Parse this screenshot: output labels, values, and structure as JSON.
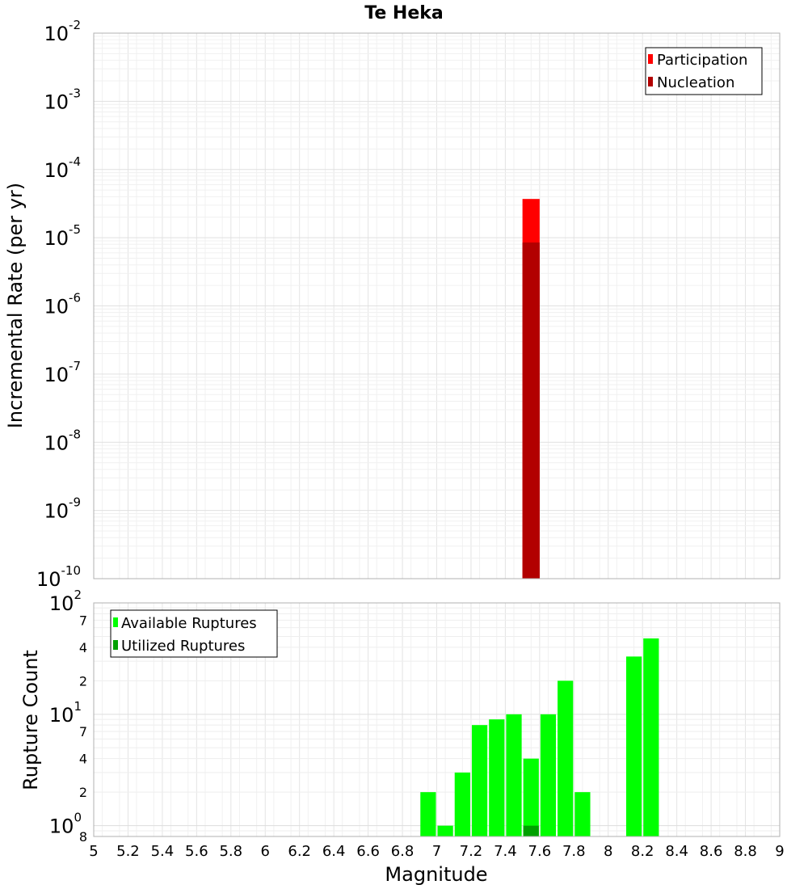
{
  "chart_data": [
    {
      "type": "bar",
      "title": "Te Heka",
      "xlabel": "",
      "ylabel": "Incremental Rate (per yr)",
      "x_range": [
        5,
        9
      ],
      "y_scale": "log",
      "ylim": [
        1e-10,
        0.01
      ],
      "grid": true,
      "legend_position": "top-right",
      "y_tick_labels": [
        {
          "value": 1e-10,
          "base": "10",
          "exp": "-10"
        },
        {
          "value": 1e-09,
          "base": "10",
          "exp": "-9"
        },
        {
          "value": 1e-08,
          "base": "10",
          "exp": "-8"
        },
        {
          "value": 1e-07,
          "base": "10",
          "exp": "-7"
        },
        {
          "value": 1e-06,
          "base": "10",
          "exp": "-6"
        },
        {
          "value": 1e-05,
          "base": "10",
          "exp": "-5"
        },
        {
          "value": 0.0001,
          "base": "10",
          "exp": "-4"
        },
        {
          "value": 0.001,
          "base": "10",
          "exp": "-3"
        },
        {
          "value": 0.01,
          "base": "10",
          "exp": "-2"
        }
      ],
      "series": [
        {
          "name": "Participation",
          "color": "#ff0000",
          "x": [
            7.55
          ],
          "values": [
            3.7e-05
          ]
        },
        {
          "name": "Nucleation",
          "color": "#b20000",
          "x": [
            7.55
          ],
          "values": [
            8.5e-06
          ]
        }
      ]
    },
    {
      "type": "bar",
      "xlabel": "Magnitude",
      "ylabel": "Rupture Count",
      "x_range": [
        5,
        9
      ],
      "y_scale": "log",
      "ylim": [
        0.8,
        100
      ],
      "grid": true,
      "legend_position": "top-left",
      "y_tick_labels": [
        {
          "value": 1,
          "base": "10",
          "exp": "0"
        },
        {
          "value": 10,
          "base": "10",
          "exp": "1"
        },
        {
          "value": 100,
          "base": "10",
          "exp": "2"
        }
      ],
      "y_minor_tick_labels": [
        {
          "value": 0.8,
          "label": "8"
        },
        {
          "value": 2,
          "label": "2"
        },
        {
          "value": 4,
          "label": "4"
        },
        {
          "value": 7,
          "label": "7"
        },
        {
          "value": 20,
          "label": "2"
        },
        {
          "value": 40,
          "label": "4"
        },
        {
          "value": 70,
          "label": "7"
        }
      ],
      "x_tick_labels": [
        "5",
        "5.2",
        "5.4",
        "5.6",
        "5.8",
        "6",
        "6.2",
        "6.4",
        "6.6",
        "6.8",
        "7",
        "7.2",
        "7.4",
        "7.6",
        "7.8",
        "8",
        "8.2",
        "8.4",
        "8.6",
        "8.8",
        "9"
      ],
      "series": [
        {
          "name": "Available Ruptures",
          "color": "#00ff00",
          "x": [
            6.95,
            7.05,
            7.15,
            7.25,
            7.35,
            7.45,
            7.55,
            7.65,
            7.75,
            7.85,
            8.15,
            8.25
          ],
          "values": [
            2,
            1,
            3,
            8,
            9,
            10,
            4,
            10,
            20,
            2,
            33,
            48
          ]
        },
        {
          "name": "Utilized Ruptures",
          "color": "#00a000",
          "x": [
            7.55
          ],
          "values": [
            1
          ]
        }
      ]
    }
  ]
}
